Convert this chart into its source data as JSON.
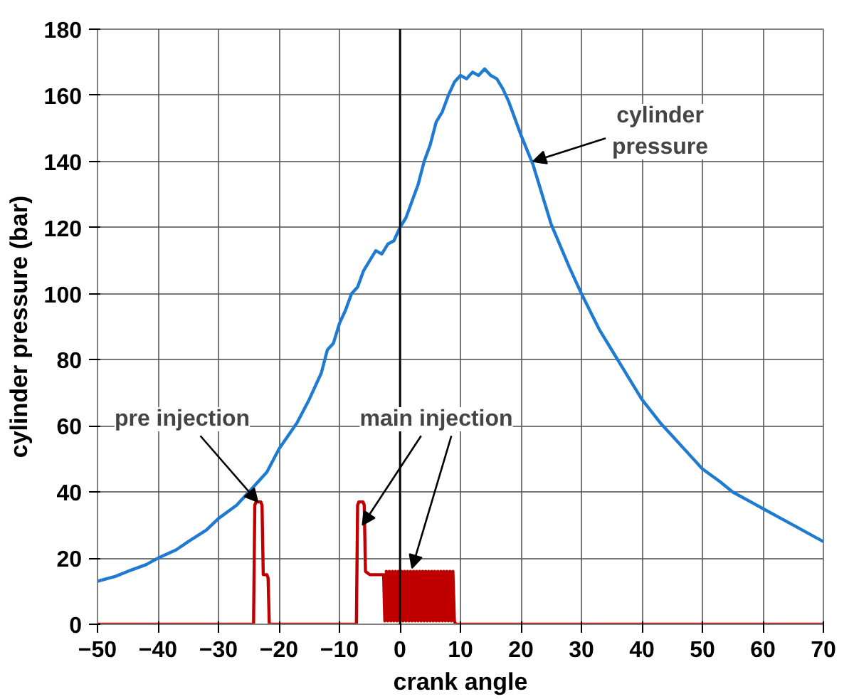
{
  "chart_data": {
    "type": "line",
    "xlabel": "crank angle",
    "ylabel": "cylinder pressure (bar)",
    "xlim": [
      -50,
      70
    ],
    "ylim": [
      0,
      180
    ],
    "xticks": [
      -50,
      -40,
      -30,
      -20,
      -10,
      0,
      10,
      20,
      30,
      40,
      50,
      60,
      70
    ],
    "yticks": [
      0,
      20,
      40,
      60,
      80,
      100,
      120,
      140,
      160,
      180
    ],
    "grid": true,
    "marker": "none",
    "line_style": "solid",
    "ref_lines": [
      {
        "axis": "x",
        "value": 0,
        "color": "#000000"
      }
    ],
    "annotations": [
      {
        "text": "pre injection",
        "x": -23.5,
        "y": 37
      },
      {
        "text": "main injection",
        "x": -6.2,
        "y": 30
      },
      {
        "text": "cylinder\npressure",
        "x": 22,
        "y": 140
      }
    ],
    "series": [
      {
        "color": "#1f7ad1",
        "x": [
          -50,
          -47,
          -45,
          -42,
          -40,
          -37,
          -35,
          -32,
          -30,
          -27,
          -25,
          -22,
          -20,
          -17,
          -15,
          -13,
          -12,
          -11,
          -10,
          -9,
          -8,
          -7,
          -6,
          -5,
          -4,
          -3,
          -2,
          -1,
          0,
          1,
          2,
          3,
          4,
          5,
          6,
          7,
          8,
          9,
          10,
          11,
          12,
          13,
          14,
          15,
          16,
          17,
          18,
          20,
          22,
          25,
          28,
          30,
          33,
          35,
          38,
          40,
          43,
          45,
          48,
          50,
          53,
          55,
          58,
          60,
          63,
          65,
          68,
          70
        ],
        "values": [
          13,
          14.5,
          16,
          18,
          20,
          22.5,
          25,
          28.5,
          32,
          36,
          40,
          46,
          53,
          61,
          68,
          76,
          83,
          85,
          91,
          95,
          100,
          102,
          107,
          110,
          113,
          112,
          115,
          116,
          120,
          123,
          128,
          133,
          140,
          145,
          152,
          155,
          160,
          164,
          166,
          165,
          167,
          166,
          168,
          166,
          165,
          162,
          158,
          148,
          139,
          121,
          108,
          100,
          89,
          83,
          74,
          68,
          61,
          57,
          51,
          47,
          43,
          40,
          37,
          35,
          32,
          30,
          27,
          25
        ]
      },
      {
        "color": "#c00000",
        "x": [
          -50,
          -24.2,
          -24,
          -23.8,
          -23,
          -22.8,
          -22.6,
          -22,
          -21.8,
          -21.6,
          -7.2,
          -7,
          -6.8,
          -6.1,
          -5.9,
          -5.7,
          -5,
          -2.7,
          -2.5,
          -2.25,
          -2,
          -1.75,
          -1.5,
          -1.25,
          -1,
          -0.75,
          -0.5,
          -0.25,
          0,
          0.25,
          0.5,
          0.75,
          1,
          1.25,
          1.5,
          1.75,
          2,
          2.25,
          2.5,
          2.75,
          3,
          3.25,
          3.5,
          3.75,
          4,
          4.25,
          4.5,
          4.75,
          5,
          5.25,
          5.5,
          5.75,
          6,
          6.25,
          6.5,
          6.75,
          7,
          7.25,
          7.5,
          7.75,
          8,
          8.25,
          8.5,
          8.75,
          9,
          9.2,
          70
        ],
        "values": [
          0,
          0,
          36,
          37,
          37,
          36,
          15,
          15,
          14,
          0,
          0,
          36,
          37,
          37,
          36,
          16,
          15,
          15,
          1,
          16,
          1,
          16,
          1,
          16,
          1,
          16,
          1,
          16,
          1,
          16,
          1,
          16,
          1,
          16,
          1,
          16,
          1,
          16,
          1,
          16,
          1,
          16,
          1,
          16,
          1,
          16,
          1,
          16,
          1,
          16,
          1,
          16,
          1,
          16,
          1,
          16,
          1,
          16,
          1,
          16,
          1,
          16,
          1,
          16,
          1,
          0,
          0
        ]
      }
    ]
  }
}
